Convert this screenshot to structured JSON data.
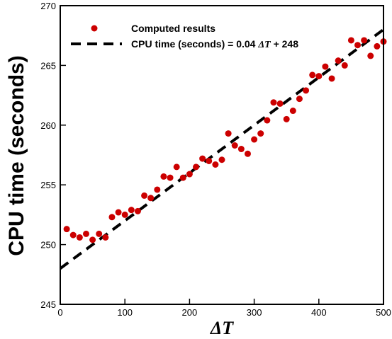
{
  "chart_data": {
    "type": "scatter",
    "xlabel": "ΔT",
    "ylabel": "CPU time (seconds)",
    "xlim": [
      0,
      500
    ],
    "ylim": [
      245,
      270
    ],
    "x_ticks": [
      0,
      100,
      200,
      300,
      400,
      500
    ],
    "y_ticks": [
      245,
      250,
      255,
      260,
      265,
      270
    ],
    "grid": false,
    "legend_position": "top-left",
    "series": [
      {
        "name": "Computed results",
        "kind": "scatter",
        "color": "#cc0000",
        "points": [
          [
            10,
            251.3
          ],
          [
            20,
            250.8
          ],
          [
            30,
            250.6
          ],
          [
            40,
            250.9
          ],
          [
            50,
            250.4
          ],
          [
            60,
            250.9
          ],
          [
            70,
            250.6
          ],
          [
            80,
            252.3
          ],
          [
            90,
            252.7
          ],
          [
            100,
            252.5
          ],
          [
            110,
            252.9
          ],
          [
            120,
            252.8
          ],
          [
            130,
            254.1
          ],
          [
            140,
            253.9
          ],
          [
            150,
            254.6
          ],
          [
            160,
            255.7
          ],
          [
            170,
            255.6
          ],
          [
            180,
            256.5
          ],
          [
            190,
            255.6
          ],
          [
            200,
            255.9
          ],
          [
            210,
            256.5
          ],
          [
            220,
            257.2
          ],
          [
            230,
            257.0
          ],
          [
            240,
            256.7
          ],
          [
            250,
            257.1
          ],
          [
            260,
            259.3
          ],
          [
            270,
            258.3
          ],
          [
            280,
            258.0
          ],
          [
            290,
            257.6
          ],
          [
            300,
            258.8
          ],
          [
            310,
            259.3
          ],
          [
            320,
            260.4
          ],
          [
            330,
            261.9
          ],
          [
            340,
            261.8
          ],
          [
            350,
            260.5
          ],
          [
            360,
            261.2
          ],
          [
            370,
            262.2
          ],
          [
            380,
            262.9
          ],
          [
            390,
            264.2
          ],
          [
            400,
            264.1
          ],
          [
            410,
            264.9
          ],
          [
            420,
            263.9
          ],
          [
            430,
            265.4
          ],
          [
            440,
            265.0
          ],
          [
            450,
            267.1
          ],
          [
            460,
            266.7
          ],
          [
            470,
            267.1
          ],
          [
            480,
            265.8
          ],
          [
            490,
            266.6
          ],
          [
            500,
            267.0
          ]
        ]
      },
      {
        "name": "CPU time (seconds) = 0.04 ΔT + 248",
        "kind": "line",
        "dash": "dashed",
        "color": "#000000",
        "slope": 0.04,
        "intercept": 248
      }
    ]
  },
  "legend": {
    "item1": "Computed results",
    "item2_prefix": "CPU time (seconds) = 0.04 ",
    "item2_var": "ΔT",
    "item2_suffix": " + 248"
  }
}
